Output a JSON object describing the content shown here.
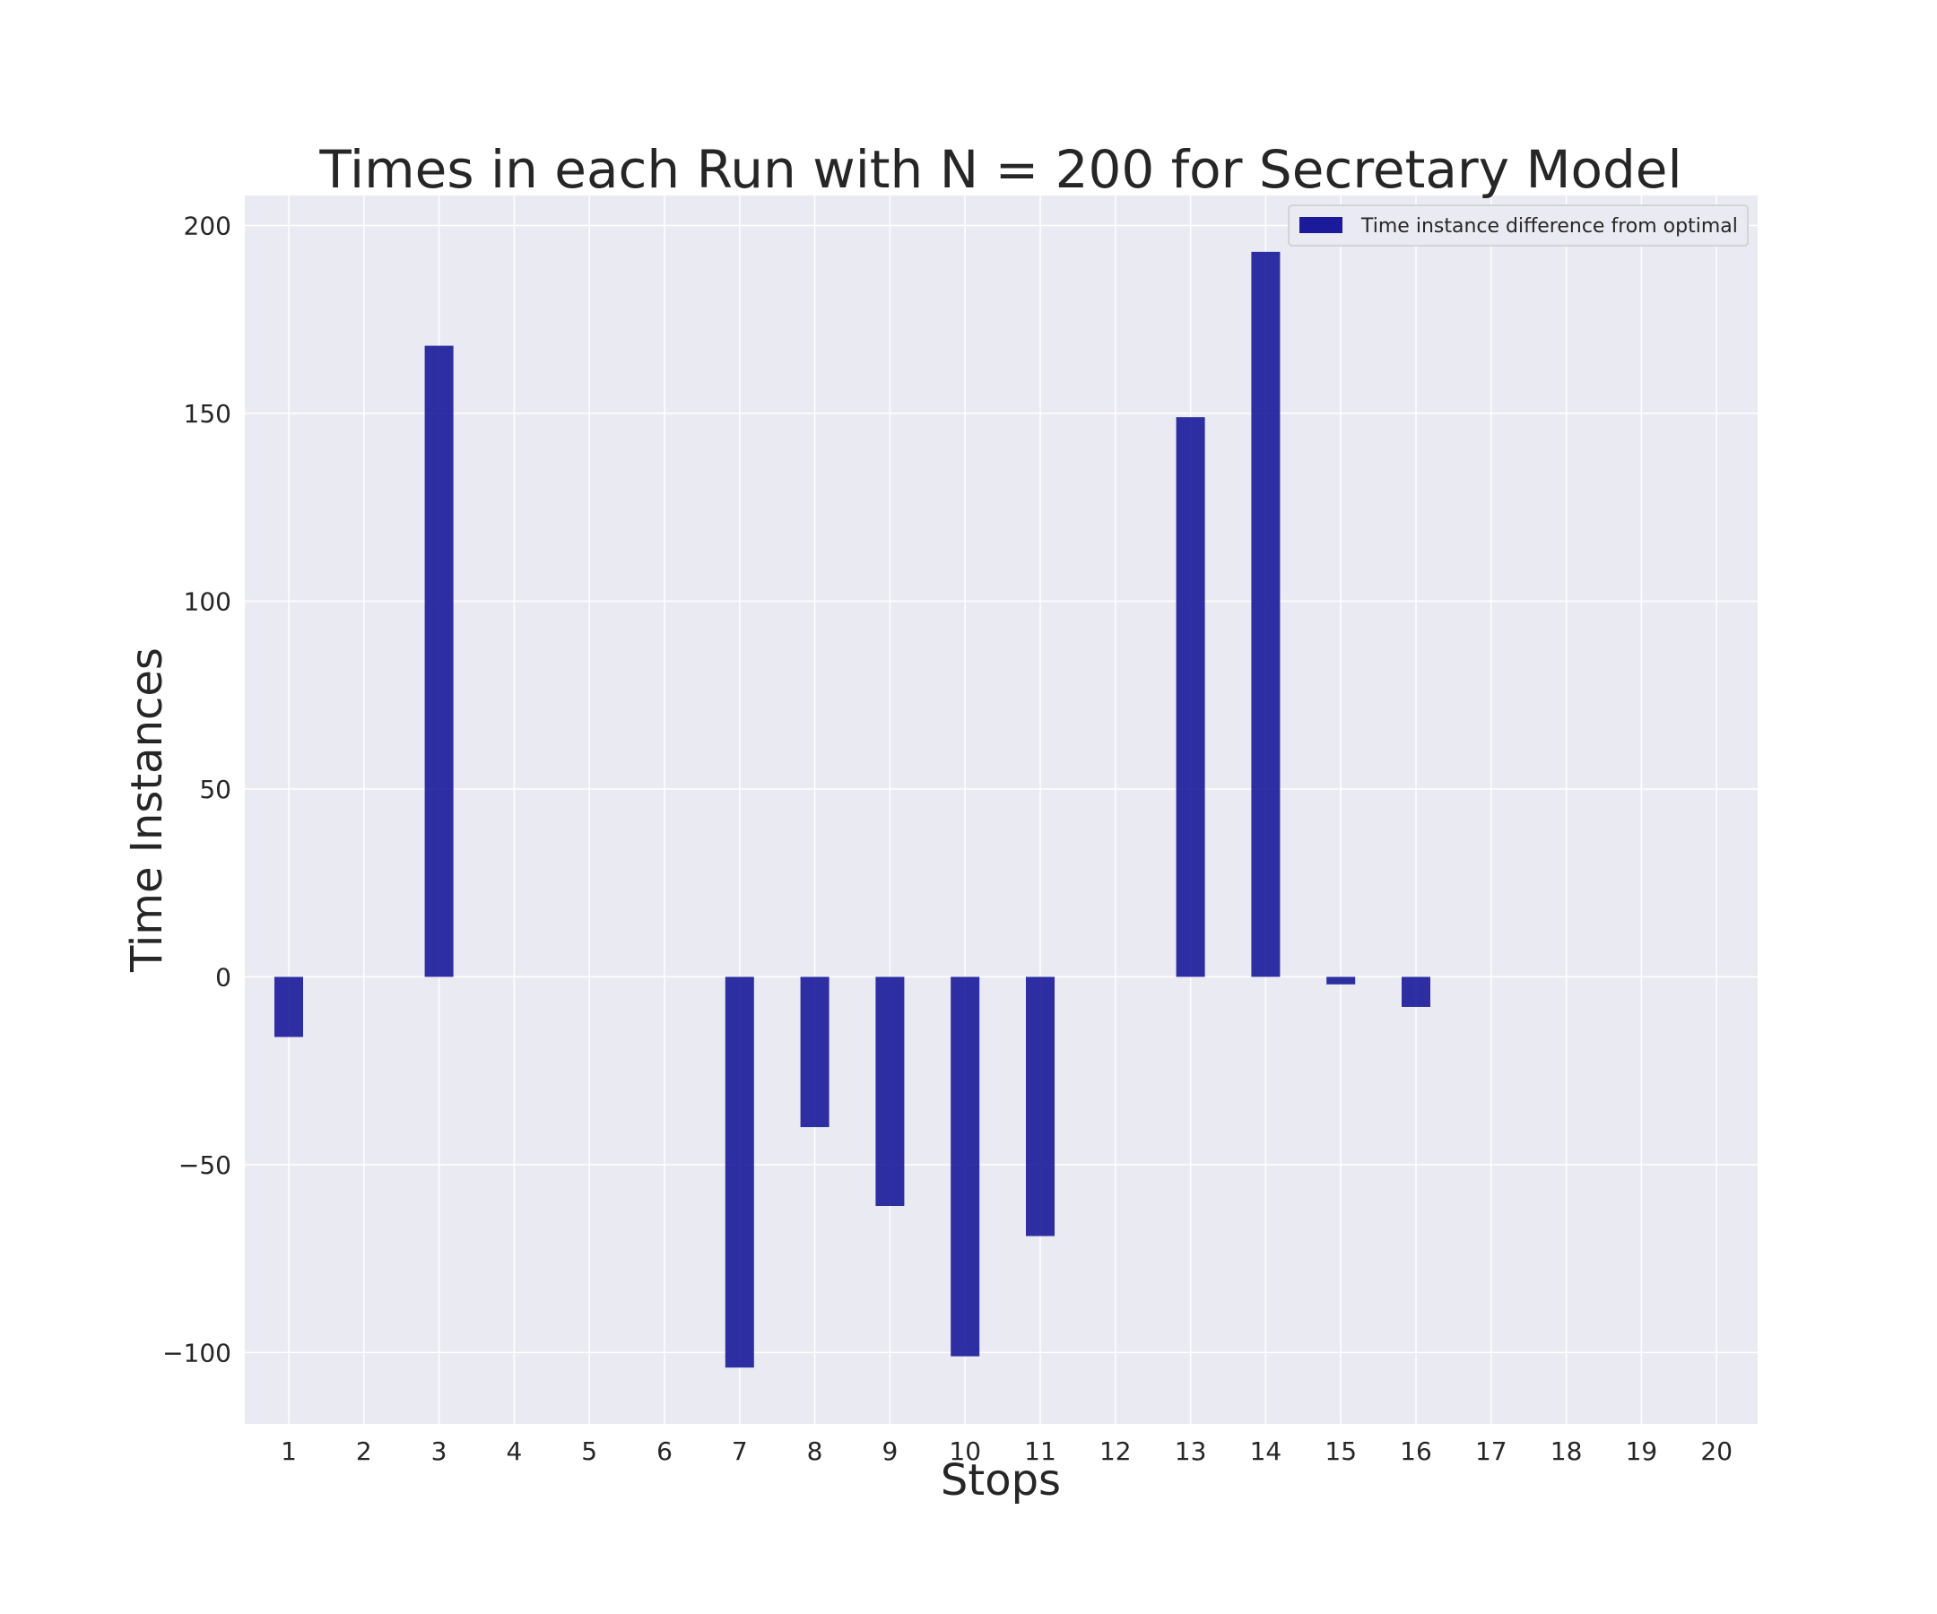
{
  "chart_data": {
    "type": "bar",
    "title": "Times in each Run with N = 200 for Secretary Model",
    "xlabel": "Stops",
    "ylabel": "Time Instances",
    "categories": [
      "1",
      "2",
      "3",
      "4",
      "5",
      "6",
      "7",
      "8",
      "9",
      "10",
      "11",
      "12",
      "13",
      "14",
      "15",
      "16",
      "17",
      "18",
      "19",
      "20"
    ],
    "series": [
      {
        "name": "Time instance difference from optimal",
        "color": "#1a1a9a",
        "values": [
          -16,
          0,
          168,
          0,
          0,
          0,
          -104,
          -40,
          -61,
          -101,
          -69,
          0,
          149,
          193,
          -2,
          -8,
          0,
          0,
          0,
          0
        ]
      }
    ],
    "ylim": [
      -119,
      208
    ],
    "yticks": [
      -100,
      -50,
      0,
      50,
      100,
      150,
      200
    ],
    "ytick_labels": [
      "−100",
      "−50",
      "0",
      "50",
      "100",
      "150",
      "200"
    ],
    "grid": true,
    "legend_position": "upper right",
    "background_color": "#eaeaf2"
  }
}
